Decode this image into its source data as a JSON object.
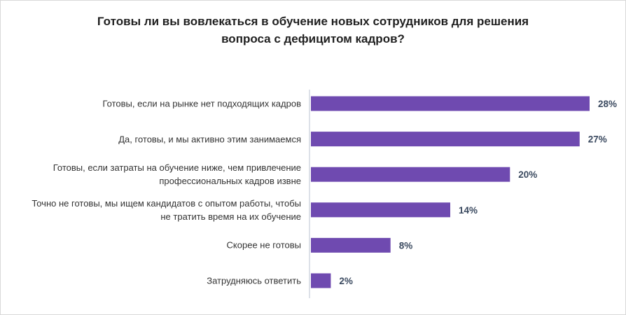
{
  "chart_data": {
    "type": "bar",
    "orientation": "horizontal",
    "title": [
      "Готовы ли вы вовлекаться в обучение новых сотрудников для решения",
      "вопроса с дефицитом кадров?"
    ],
    "categories": [
      [
        "Готовы, если на рынке нет подходящих кадров"
      ],
      [
        "Да, готовы, и мы активно этим занимаемся"
      ],
      [
        "Готовы, если затраты на обучение ниже, чем привлечение",
        "профессиональных кадров извне"
      ],
      [
        "Точно не готовы, мы ищем кандидатов с опытом работы, чтобы",
        "не тратить время на их обучение"
      ],
      [
        "Скорее не готовы"
      ],
      [
        "Затрудняюсь ответить"
      ]
    ],
    "values": [
      28,
      27,
      20,
      14,
      8,
      2
    ],
    "data_labels": [
      "28%",
      "27%",
      "20%",
      "14%",
      "8%",
      "2%"
    ],
    "unit": "%",
    "xlim": [
      0,
      28
    ],
    "grid": false,
    "legend": "none",
    "colors": {
      "bar": "#6f4ab0",
      "label": "#3b4a60",
      "axis": "#dde1e8"
    }
  }
}
